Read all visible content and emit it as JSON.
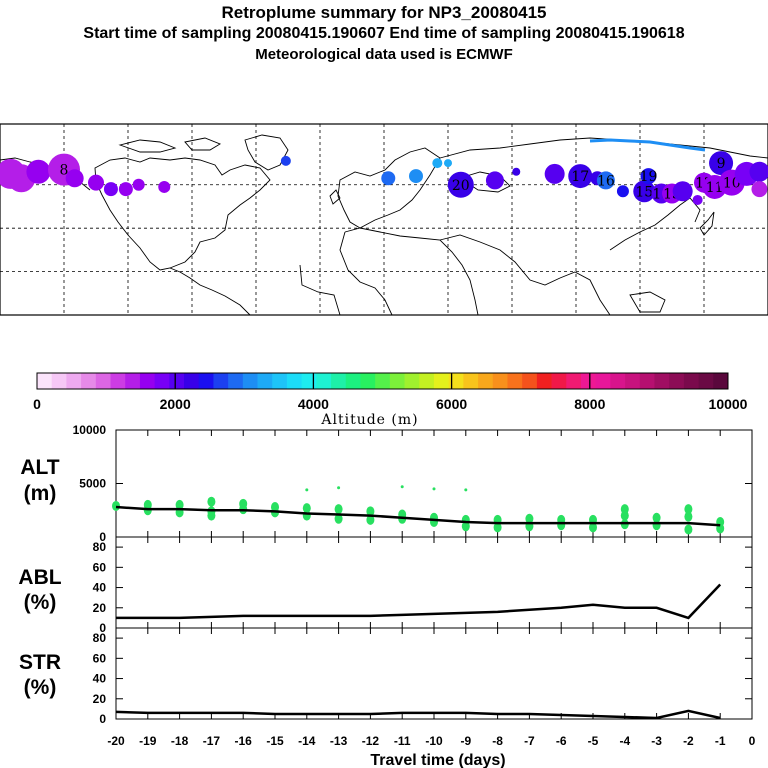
{
  "title": "Retroplume summary for NP3_20080415",
  "subtitle": "Start time of sampling 20080415.190607     End time of sampling 20080415.190618",
  "meteo_line": "Meteorological data used is ECMWF",
  "colorbar": {
    "label": "Altitude (m)",
    "tick_labels": [
      "0",
      "2000",
      "4000",
      "6000",
      "8000",
      "10000"
    ],
    "range": [
      0,
      10000
    ],
    "colors": [
      "#fbe4fb",
      "#f6c8f6",
      "#eeaaf0",
      "#e68ae8",
      "#dc66e4",
      "#cc3ce4",
      "#b41ee8",
      "#9600f0",
      "#7800f6",
      "#5600f0",
      "#3800e8",
      "#1a10f0",
      "#1c40f0",
      "#1e6af2",
      "#1e8ef4",
      "#1eaaf6",
      "#1ec4f8",
      "#1cdcf8",
      "#1eecf0",
      "#1ef2d2",
      "#1ef0a8",
      "#1cf080",
      "#28f060",
      "#54f04a",
      "#7cf03a",
      "#a0f02e",
      "#c4f022",
      "#e4f01c",
      "#f4e01c",
      "#f8c41c",
      "#f8a81c",
      "#f8901c",
      "#f8721c",
      "#f4521c",
      "#f02020",
      "#f01848",
      "#f01a72",
      "#ee1894",
      "#e8169a",
      "#d8148c",
      "#c8127e",
      "#b61070",
      "#a00e62",
      "#8c0c56",
      "#7a0a4c",
      "#6a0a44",
      "#5a083c"
    ]
  },
  "map": {
    "plume_labels": [
      "8",
      "8",
      "14",
      "20",
      "17",
      "16",
      "15",
      "19",
      "18",
      "13",
      "9",
      "12",
      "11",
      "10"
    ],
    "plume_points": [
      {
        "lon": -175,
        "lat": 65,
        "alt": 1400,
        "size": 15
      },
      {
        "lon": -170,
        "lat": 63,
        "alt": 1300,
        "size": 14
      },
      {
        "lon": -162,
        "lat": 66,
        "alt": 1500,
        "size": 12
      },
      {
        "lon": -150,
        "lat": 67,
        "alt": 1350,
        "size": 16,
        "label": "8"
      },
      {
        "lon": -145,
        "lat": 63,
        "alt": 1600,
        "size": 9
      },
      {
        "lon": -135,
        "lat": 61,
        "alt": 1700,
        "size": 8
      },
      {
        "lon": -128,
        "lat": 58,
        "alt": 1800,
        "size": 7
      },
      {
        "lon": -121,
        "lat": 58,
        "alt": 1600,
        "size": 7
      },
      {
        "lon": -115,
        "lat": 60,
        "alt": 1700,
        "size": 6
      },
      {
        "lon": -103,
        "lat": 59,
        "alt": 1600,
        "size": 6
      },
      {
        "lon": -46,
        "lat": 71,
        "alt": 2600,
        "size": 5
      },
      {
        "lon": 2,
        "lat": 63,
        "alt": 2800,
        "size": 7
      },
      {
        "lon": 15,
        "lat": 64,
        "alt": 3000,
        "size": 7
      },
      {
        "lon": 25,
        "lat": 70,
        "alt": 3200,
        "size": 5
      },
      {
        "lon": 30,
        "lat": 70,
        "alt": 3400,
        "size": 4
      },
      {
        "lon": 36,
        "lat": 60,
        "alt": 2200,
        "size": 13,
        "label": "20"
      },
      {
        "lon": 52,
        "lat": 62,
        "alt": 2000,
        "size": 9
      },
      {
        "lon": 62,
        "lat": 66,
        "alt": 2200,
        "size": 4
      },
      {
        "lon": 80,
        "lat": 65,
        "alt": 2100,
        "size": 10
      },
      {
        "lon": 92,
        "lat": 64,
        "alt": 2200,
        "size": 12,
        "label": "17"
      },
      {
        "lon": 100,
        "lat": 63,
        "alt": 2300,
        "size": 7
      },
      {
        "lon": 104,
        "lat": 62,
        "alt": 2800,
        "size": 9,
        "label": "16"
      },
      {
        "lon": 112,
        "lat": 57,
        "alt": 2500,
        "size": 6
      },
      {
        "lon": 122,
        "lat": 57,
        "alt": 2300,
        "size": 11,
        "label": "15"
      },
      {
        "lon": 124,
        "lat": 64,
        "alt": 2400,
        "size": 8,
        "label": "19"
      },
      {
        "lon": 130,
        "lat": 56,
        "alt": 2000,
        "size": 10,
        "label": "18"
      },
      {
        "lon": 135,
        "lat": 56,
        "alt": 1700,
        "size": 10,
        "label": "13"
      },
      {
        "lon": 140,
        "lat": 57,
        "alt": 2100,
        "size": 10
      },
      {
        "lon": 147,
        "lat": 53,
        "alt": 1800,
        "size": 5
      },
      {
        "lon": 150,
        "lat": 61,
        "alt": 1700,
        "size": 10,
        "label": "12"
      },
      {
        "lon": 155,
        "lat": 59,
        "alt": 1600,
        "size": 12,
        "label": "11"
      },
      {
        "lon": 158,
        "lat": 70,
        "alt": 2300,
        "size": 12,
        "label": "9"
      },
      {
        "lon": 163,
        "lat": 61,
        "alt": 1700,
        "size": 13,
        "label": "10"
      },
      {
        "lon": 170,
        "lat": 65,
        "alt": 1900,
        "size": 12
      },
      {
        "lon": 176,
        "lat": 66,
        "alt": 2100,
        "size": 10
      },
      {
        "lon": 176,
        "lat": 58,
        "alt": 1400,
        "size": 8
      }
    ]
  },
  "chart_data": [
    {
      "type": "scatter",
      "name": "ALT",
      "ylabel": "ALT\n(m)",
      "ylim": [
        0,
        10000
      ],
      "yticks": [
        "10000",
        "5000",
        "0"
      ],
      "xlim": [
        -20,
        0
      ],
      "median_line": {
        "x": [
          -20,
          -19,
          -18,
          -17,
          -16,
          -15,
          -14,
          -13,
          -12,
          -11,
          -10,
          -9,
          -8,
          -7,
          -6,
          -5,
          -4,
          -3,
          -2,
          -1
        ],
        "y": [
          2800,
          2600,
          2600,
          2500,
          2500,
          2400,
          2200,
          2100,
          2000,
          1800,
          1600,
          1400,
          1300,
          1300,
          1300,
          1300,
          1300,
          1300,
          1300,
          1100
        ]
      },
      "scatter_points": {
        "x": [
          -20,
          -19,
          -19,
          -18,
          -18,
          -17,
          -17,
          -17,
          -16,
          -16,
          -15,
          -15,
          -14,
          -14,
          -13,
          -13,
          -12,
          -12,
          -11,
          -11,
          -10,
          -10,
          -9,
          -9,
          -8,
          -8,
          -7,
          -7,
          -6,
          -6,
          -5,
          -5,
          -4,
          -4,
          -3,
          -3,
          -2,
          -2,
          -1,
          -1,
          -14,
          -13,
          -11,
          -10,
          -9,
          -4,
          -2
        ],
        "y": [
          2900,
          2500,
          3000,
          2300,
          3000,
          2400,
          3300,
          2000,
          2600,
          3100,
          2300,
          2800,
          2000,
          2700,
          1700,
          2600,
          1600,
          2400,
          1700,
          2100,
          1400,
          1800,
          1000,
          1600,
          900,
          1600,
          1000,
          1700,
          1100,
          1600,
          900,
          1600,
          1200,
          2000,
          1100,
          1800,
          700,
          1900,
          800,
          1400,
          4400,
          4600,
          4700,
          4500,
          4400,
          2600,
          2600
        ]
      }
    },
    {
      "type": "line",
      "name": "ABL",
      "ylabel": "ABL\n(%)",
      "ylim": [
        0,
        90
      ],
      "yticks": [
        "80",
        "60",
        "40",
        "20",
        "0"
      ],
      "x": [
        -20,
        -19,
        -18,
        -17,
        -16,
        -15,
        -14,
        -13,
        -12,
        -11,
        -10,
        -9,
        -8,
        -7,
        -6,
        -5,
        -4,
        -3,
        -2,
        -1
      ],
      "values": [
        10,
        10,
        10,
        11,
        12,
        12,
        12,
        12,
        12,
        13,
        14,
        15,
        16,
        18,
        20,
        23,
        20,
        20,
        10,
        43
      ]
    },
    {
      "type": "line",
      "name": "STR",
      "ylabel": "STR\n(%)",
      "ylim": [
        0,
        90
      ],
      "yticks": [
        "80",
        "60",
        "40",
        "20",
        "0"
      ],
      "x": [
        -20,
        -19,
        -18,
        -17,
        -16,
        -15,
        -14,
        -13,
        -12,
        -11,
        -10,
        -9,
        -8,
        -7,
        -6,
        -5,
        -4,
        -3,
        -2,
        -1
      ],
      "values": [
        7,
        6,
        6,
        6,
        6,
        5,
        5,
        5,
        5,
        6,
        6,
        6,
        5,
        5,
        4,
        3,
        2,
        1,
        8,
        1
      ]
    }
  ],
  "x_axis": {
    "label": "Travel time (days)",
    "tick_labels": [
      "-20",
      "-19",
      "-18",
      "-17",
      "-16",
      "-15",
      "-14",
      "-13",
      "-12",
      "-11",
      "-10",
      "-9",
      "-8",
      "-7",
      "-6",
      "-5",
      "-4",
      "-3",
      "-2",
      "-1",
      "0"
    ],
    "tick_values": [
      -20,
      -19,
      -18,
      -17,
      -16,
      -15,
      -14,
      -13,
      -12,
      -11,
      -10,
      -9,
      -8,
      -7,
      -6,
      -5,
      -4,
      -3,
      -2,
      -1,
      0
    ]
  },
  "colors": {
    "alt_points": "#28e060",
    "lines": "#000000",
    "frame": "#000000"
  }
}
